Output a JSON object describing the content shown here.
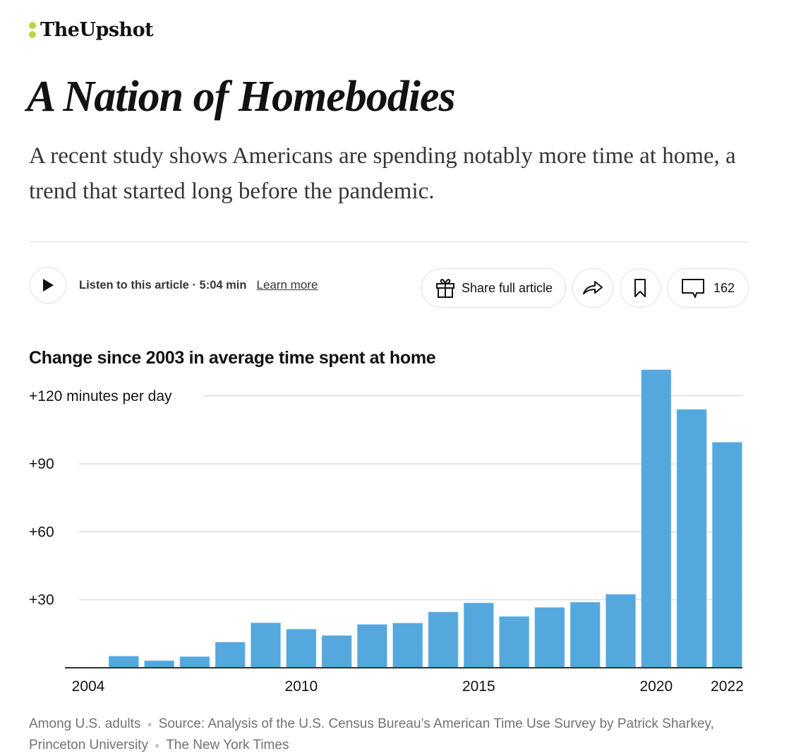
{
  "brand": {
    "name": "TheUpshot",
    "dot_color": "#b9d645"
  },
  "article": {
    "headline": "A Nation of Homebodies",
    "dek": "A recent study shows Americans are spending notably more time at home, a trend that started long before the pandemic."
  },
  "audio": {
    "play_icon": "play-icon",
    "label": "Listen to this article · 5:04 min",
    "learn_more": "Learn more"
  },
  "actions": {
    "share_icon": "gift-icon",
    "share_label": "Share full article",
    "forward_icon": "share-arrow-icon",
    "bookmark_icon": "bookmark-icon",
    "comments_icon": "comment-icon",
    "comments_count": "162"
  },
  "chart_data": {
    "type": "bar",
    "title": "Change since 2003 in average time spent at home",
    "xlabel": "",
    "ylabel": "minutes per day",
    "units_label": "+120 minutes per day",
    "categories": [
      "2004",
      "2005",
      "2006",
      "2007",
      "2008",
      "2009",
      "2010",
      "2011",
      "2012",
      "2013",
      "2014",
      "2015",
      "2016",
      "2017",
      "2018",
      "2019",
      "2020",
      "2021",
      "2022"
    ],
    "values": [
      0,
      5.1,
      3.1,
      4.9,
      11.3,
      19.8,
      17.0,
      14.2,
      19.1,
      19.7,
      24.6,
      28.6,
      22.6,
      26.6,
      28.9,
      32.4,
      131.5,
      114.0,
      99.5
    ],
    "ylim": [
      0,
      131.5
    ],
    "yticks": [
      {
        "value": 30,
        "label": "+30"
      },
      {
        "value": 60,
        "label": "+60"
      },
      {
        "value": 90,
        "label": "+90"
      },
      {
        "value": 120,
        "label": "+120 minutes per day"
      }
    ],
    "xtick_labels": [
      "2004",
      "2010",
      "2015",
      "2020",
      "2022"
    ],
    "grid": true,
    "bar_color": "#55a8dd",
    "legend": "none"
  },
  "footer": {
    "note": "Among U.S. adults",
    "source": "Source: Analysis of the U.S. Census Bureau’s American Time Use Survey by Patrick Sharkey, Princeton University",
    "credit": "The New York Times"
  }
}
